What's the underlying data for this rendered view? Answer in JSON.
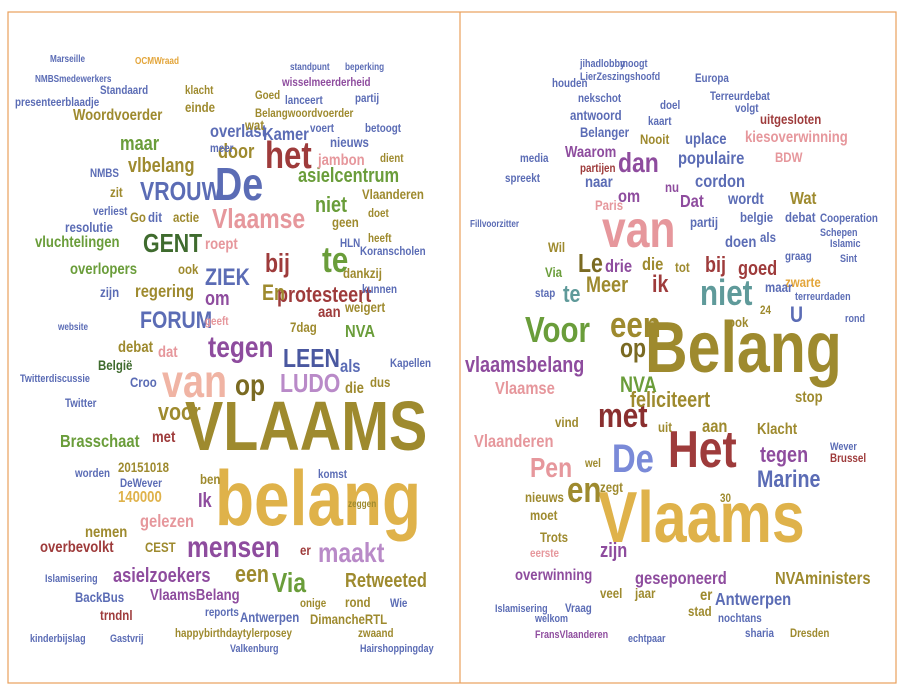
{
  "left": {
    "words": [
      {
        "text": "VLAAMS",
        "color": "#9e8a2e"
      },
      {
        "text": "belang",
        "color": "#dfb24a"
      },
      {
        "text": "De",
        "color": "#5b6cb5"
      },
      {
        "text": "het",
        "color": "#9e3b3b"
      },
      {
        "text": "VROUW",
        "color": "#5b6cb5"
      },
      {
        "text": "Vlaamse",
        "color": "#e6979c"
      },
      {
        "text": "GENT",
        "color": "#3f6b2e"
      },
      {
        "text": "te",
        "color": "#6a9d3a"
      },
      {
        "text": "bij",
        "color": "#9e3b3b"
      },
      {
        "text": "ZIEK",
        "color": "#5b6cb5"
      },
      {
        "text": "FORUM",
        "color": "#5b6cb5"
      },
      {
        "text": "tegen",
        "color": "#8e4c9e"
      },
      {
        "text": "LEEN",
        "color": "#4a58a0"
      },
      {
        "text": "van",
        "color": "#f0b4a4"
      },
      {
        "text": "op",
        "color": "#7a6a22"
      },
      {
        "text": "LUDO",
        "color": "#b98ac8"
      },
      {
        "text": "voor",
        "color": "#9e8a2e"
      },
      {
        "text": "protesteert",
        "color": "#9e3b3b"
      },
      {
        "text": "niet",
        "color": "#6a9d3a"
      },
      {
        "text": "asielcentrum",
        "color": "#6a9d3a"
      },
      {
        "text": "Kamer",
        "color": "#5b6cb5"
      },
      {
        "text": "overlast",
        "color": "#5b6cb5"
      },
      {
        "text": "door",
        "color": "#9e8a2e"
      },
      {
        "text": "maar",
        "color": "#6a9d3a"
      },
      {
        "text": "vlbelang",
        "color": "#9e8a2e"
      },
      {
        "text": "Woordvoerder",
        "color": "#9e8a2e"
      },
      {
        "text": "presenteerblaadje",
        "color": "#5b6cb5"
      },
      {
        "text": "Standaard",
        "color": "#5b6cb5"
      },
      {
        "text": "wisselmeerderheid",
        "color": "#8e4c9e"
      },
      {
        "text": "Vlaanderen",
        "color": "#9e8a2e"
      },
      {
        "text": "Koranscholen",
        "color": "#5b6cb5"
      },
      {
        "text": "dankzij",
        "color": "#9e8a2e"
      },
      {
        "text": "kunnen",
        "color": "#5b6cb5"
      },
      {
        "text": "weigert",
        "color": "#9e8a2e"
      },
      {
        "text": "7dag",
        "color": "#9e8a2e"
      },
      {
        "text": "NVA",
        "color": "#6a9d3a"
      },
      {
        "text": "als",
        "color": "#5b6cb5"
      },
      {
        "text": "die",
        "color": "#9e8a2e"
      },
      {
        "text": "Kapellen",
        "color": "#5b6cb5"
      },
      {
        "text": "regering",
        "color": "#9e8a2e"
      },
      {
        "text": "om",
        "color": "#8e4c9e"
      },
      {
        "text": "zijn",
        "color": "#5b6cb5"
      },
      {
        "text": "overlopers",
        "color": "#6a9d3a"
      },
      {
        "text": "vluchtelingen",
        "color": "#6a9d3a"
      },
      {
        "text": "resolutie",
        "color": "#5b6cb5"
      },
      {
        "text": "geen",
        "color": "#9e8a2e"
      },
      {
        "text": "HLN",
        "color": "#5b6cb5"
      },
      {
        "text": "heeft",
        "color": "#9e8a2e"
      },
      {
        "text": "roept",
        "color": "#e6979c"
      },
      {
        "text": "En",
        "color": "#9e8a2e"
      },
      {
        "text": "debat",
        "color": "#9e8a2e"
      },
      {
        "text": "dat",
        "color": "#e6979c"
      },
      {
        "text": "België",
        "color": "#3f6b2e"
      },
      {
        "text": "Croo",
        "color": "#5b6cb5"
      },
      {
        "text": "Twitterdiscussie",
        "color": "#5b6cb5"
      },
      {
        "text": "Twitter",
        "color": "#5b6cb5"
      },
      {
        "text": "Brasschaat",
        "color": "#6a9d3a"
      },
      {
        "text": "met",
        "color": "#9e3b3b"
      },
      {
        "text": "20151018",
        "color": "#9e8a2e"
      },
      {
        "text": "140000",
        "color": "#dfb24a"
      },
      {
        "text": "DeWever",
        "color": "#5b6cb5"
      },
      {
        "text": "Ik",
        "color": "#8e4c9e"
      },
      {
        "text": "gelezen",
        "color": "#e6979c"
      },
      {
        "text": "nemen",
        "color": "#9e8a2e"
      },
      {
        "text": "overbevolkt",
        "color": "#9e3b3b"
      },
      {
        "text": "CEST",
        "color": "#9e8a2e"
      },
      {
        "text": "mensen",
        "color": "#8e4c9e"
      },
      {
        "text": "maakt",
        "color": "#b98ac8"
      },
      {
        "text": "een",
        "color": "#9e8a2e"
      },
      {
        "text": "Via",
        "color": "#6a9d3a"
      },
      {
        "text": "Retweeted",
        "color": "#9e8a2e"
      },
      {
        "text": "asielzoekers",
        "color": "#8e4c9e"
      },
      {
        "text": "Islamisering",
        "color": "#5b6cb5"
      },
      {
        "text": "BackBus",
        "color": "#5b6cb5"
      },
      {
        "text": "VlaamsBelang",
        "color": "#8e4c9e"
      },
      {
        "text": "trndnl",
        "color": "#9e3b3b"
      },
      {
        "text": "Antwerpen",
        "color": "#5b6cb5"
      },
      {
        "text": "DimancheRTL",
        "color": "#9e8a2e"
      },
      {
        "text": "rond",
        "color": "#9e8a2e"
      },
      {
        "text": "happybirthdaytylerposey",
        "color": "#9e8a2e"
      },
      {
        "text": "kinderbijslag",
        "color": "#5b6cb5"
      },
      {
        "text": "Gastvrij",
        "color": "#5b6cb5"
      },
      {
        "text": "Valkenburg",
        "color": "#5b6cb5"
      },
      {
        "text": "Hairshoppingday",
        "color": "#5b6cb5"
      },
      {
        "text": "zwaand",
        "color": "#9e8a2e"
      },
      {
        "text": "reports",
        "color": "#5b6cb5"
      },
      {
        "text": "onige",
        "color": "#9e8a2e"
      },
      {
        "text": "er",
        "color": "#9e3b3b"
      },
      {
        "text": "Marseille",
        "color": "#5b6cb5"
      },
      {
        "text": "NMBSmedewerkers",
        "color": "#5b6cb5"
      },
      {
        "text": "OCMWraad",
        "color": "#e3a53a"
      },
      {
        "text": "standpunt",
        "color": "#5b6cb5"
      },
      {
        "text": "beperking",
        "color": "#5b6cb5"
      },
      {
        "text": "lanceert",
        "color": "#5b6cb5"
      },
      {
        "text": "partij",
        "color": "#5b6cb5"
      },
      {
        "text": "einde",
        "color": "#9e8a2e"
      },
      {
        "text": "Goed",
        "color": "#9e8a2e"
      },
      {
        "text": "klacht",
        "color": "#9e8a2e"
      },
      {
        "text": "Belangwoordvoerder",
        "color": "#9e8a2e"
      },
      {
        "text": "voert",
        "color": "#5b6cb5"
      },
      {
        "text": "betoogt",
        "color": "#5b6cb5"
      },
      {
        "text": "wat",
        "color": "#9e8a2e"
      },
      {
        "text": "nieuws",
        "color": "#5b6cb5"
      },
      {
        "text": "jambon",
        "color": "#e6979c"
      },
      {
        "text": "dient",
        "color": "#9e8a2e"
      },
      {
        "text": "meer",
        "color": "#5b6cb5"
      },
      {
        "text": "zit",
        "color": "#9e8a2e"
      },
      {
        "text": "NMBS",
        "color": "#5b6cb5"
      },
      {
        "text": "verliest",
        "color": "#5b6cb5"
      },
      {
        "text": "Go",
        "color": "#9e8a2e"
      },
      {
        "text": "dit",
        "color": "#5b6cb5"
      },
      {
        "text": "actie",
        "color": "#9e8a2e"
      },
      {
        "text": "doet",
        "color": "#9e8a2e"
      },
      {
        "text": "ook",
        "color": "#9e8a2e"
      },
      {
        "text": "geeft",
        "color": "#e6979c"
      },
      {
        "text": "aan",
        "color": "#9e3b3b"
      },
      {
        "text": "dus",
        "color": "#9e8a2e"
      },
      {
        "text": "website",
        "color": "#5b6cb5"
      },
      {
        "text": "zeggen",
        "color": "#9e8a2e"
      },
      {
        "text": "worden",
        "color": "#5b6cb5"
      },
      {
        "text": "ben",
        "color": "#9e8a2e"
      },
      {
        "text": "Wie",
        "color": "#5b6cb5"
      },
      {
        "text": "komst",
        "color": "#5b6cb5"
      }
    ]
  },
  "right": {
    "words": [
      {
        "text": "Belang",
        "color": "#9e8a2e"
      },
      {
        "text": "Vlaams",
        "color": "#dfb24a"
      },
      {
        "text": "Het",
        "color": "#9e3b3b"
      },
      {
        "text": "De",
        "color": "#7a8ad8"
      },
      {
        "text": "van",
        "color": "#e6979c"
      },
      {
        "text": "een",
        "color": "#9e8a2e"
      },
      {
        "text": "Voor",
        "color": "#6a9d3a"
      },
      {
        "text": "niet",
        "color": "#5f9a9a"
      },
      {
        "text": "Le",
        "color": "#7a6a22"
      },
      {
        "text": "dan",
        "color": "#8e4c9e"
      },
      {
        "text": "Dat",
        "color": "#8e4c9e"
      },
      {
        "text": "om",
        "color": "#8e4c9e"
      },
      {
        "text": "op",
        "color": "#7a6a22"
      },
      {
        "text": "met",
        "color": "#8a2f2f"
      },
      {
        "text": "en",
        "color": "#9e8a2e"
      },
      {
        "text": "Pen",
        "color": "#e6979c"
      },
      {
        "text": "feliciteert",
        "color": "#9e8a2e"
      },
      {
        "text": "vlaamsbelang",
        "color": "#8e4c9e"
      },
      {
        "text": "Vlaamse",
        "color": "#e6979c"
      },
      {
        "text": "NVA",
        "color": "#6a9d3a"
      },
      {
        "text": "Vlaanderen",
        "color": "#e6979c"
      },
      {
        "text": "Marine",
        "color": "#5b6cb5"
      },
      {
        "text": "tegen",
        "color": "#8e4c9e"
      },
      {
        "text": "Klacht",
        "color": "#9e8a2e"
      },
      {
        "text": "stop",
        "color": "#9e8a2e"
      },
      {
        "text": "aan",
        "color": "#9e8a2e"
      },
      {
        "text": "uit",
        "color": "#9e8a2e"
      },
      {
        "text": "vind",
        "color": "#9e8a2e"
      },
      {
        "text": "Meer",
        "color": "#9e8a2e"
      },
      {
        "text": "ik",
        "color": "#9e3b3b"
      },
      {
        "text": "drie",
        "color": "#8e4c9e"
      },
      {
        "text": "die",
        "color": "#9e8a2e"
      },
      {
        "text": "tot",
        "color": "#9e8a2e"
      },
      {
        "text": "bij",
        "color": "#9e3b3b"
      },
      {
        "text": "goed",
        "color": "#9e3b3b"
      },
      {
        "text": "Via",
        "color": "#6a9d3a"
      },
      {
        "text": "Wil",
        "color": "#9e8a2e"
      },
      {
        "text": "doen",
        "color": "#5b6cb5"
      },
      {
        "text": "als",
        "color": "#5b6cb5"
      },
      {
        "text": "graag",
        "color": "#5b6cb5"
      },
      {
        "text": "zwarte",
        "color": "#e3a53a"
      },
      {
        "text": "maar",
        "color": "#5b6cb5"
      },
      {
        "text": "terreurdaden",
        "color": "#5b6cb5"
      },
      {
        "text": "ook",
        "color": "#9e8a2e"
      },
      {
        "text": "U",
        "color": "#5b6cb5"
      },
      {
        "text": "populaire",
        "color": "#5b6cb5"
      },
      {
        "text": "cordon",
        "color": "#5b6cb5"
      },
      {
        "text": "wordt",
        "color": "#5b6cb5"
      },
      {
        "text": "Wat",
        "color": "#9e8a2e"
      },
      {
        "text": "partij",
        "color": "#5b6cb5"
      },
      {
        "text": "belgie",
        "color": "#5b6cb5"
      },
      {
        "text": "debat",
        "color": "#5b6cb5"
      },
      {
        "text": "Cooperation",
        "color": "#5b6cb5"
      },
      {
        "text": "kiesoverwinning",
        "color": "#e6979c"
      },
      {
        "text": "uplace",
        "color": "#5b6cb5"
      },
      {
        "text": "Nooit",
        "color": "#9e8a2e"
      },
      {
        "text": "Belanger",
        "color": "#5b6cb5"
      },
      {
        "text": "Waarom",
        "color": "#8e4c9e"
      },
      {
        "text": "antwoord",
        "color": "#5b6cb5"
      },
      {
        "text": "nekschot",
        "color": "#5b6cb5"
      },
      {
        "text": "houden",
        "color": "#5b6cb5"
      },
      {
        "text": "LierZeszingshoofd",
        "color": "#5b6cb5"
      },
      {
        "text": "Europa",
        "color": "#5b6cb5"
      },
      {
        "text": "Terreurdebat",
        "color": "#5b6cb5"
      },
      {
        "text": "uitgesloten",
        "color": "#9e3b3b"
      },
      {
        "text": "volgt",
        "color": "#5b6cb5"
      },
      {
        "text": "doel",
        "color": "#5b6cb5"
      },
      {
        "text": "kaart",
        "color": "#5b6cb5"
      },
      {
        "text": "partijen",
        "color": "#9e3b3b"
      },
      {
        "text": "BDW",
        "color": "#e6979c"
      },
      {
        "text": "naar",
        "color": "#5b6cb5"
      },
      {
        "text": "Paris",
        "color": "#e6979c"
      },
      {
        "text": "Fillvoorzitter",
        "color": "#5b6cb5"
      },
      {
        "text": "media",
        "color": "#5b6cb5"
      },
      {
        "text": "spreekt",
        "color": "#5b6cb5"
      },
      {
        "text": "Islamic",
        "color": "#5b6cb5"
      },
      {
        "text": "Sint",
        "color": "#5b6cb5"
      },
      {
        "text": "te",
        "color": "#5f9a9a"
      },
      {
        "text": "stap",
        "color": "#5b6cb5"
      },
      {
        "text": "nu",
        "color": "#8e4c9e"
      },
      {
        "text": "rond",
        "color": "#5b6cb5"
      },
      {
        "text": "24",
        "color": "#9e8a2e"
      },
      {
        "text": "Brussel",
        "color": "#9e3b3b"
      },
      {
        "text": "Wever",
        "color": "#5b6cb5"
      },
      {
        "text": "nieuws",
        "color": "#9e8a2e"
      },
      {
        "text": "zegt",
        "color": "#9e8a2e"
      },
      {
        "text": "wel",
        "color": "#9e8a2e"
      },
      {
        "text": "zijn",
        "color": "#8e4c9e"
      },
      {
        "text": "Trots",
        "color": "#9e8a2e"
      },
      {
        "text": "moet",
        "color": "#9e8a2e"
      },
      {
        "text": "eerste",
        "color": "#e6979c"
      },
      {
        "text": "overwinning",
        "color": "#8e4c9e"
      },
      {
        "text": "geseponeerd",
        "color": "#8e4c9e"
      },
      {
        "text": "NVAministers",
        "color": "#9e8a2e"
      },
      {
        "text": "er",
        "color": "#9e8a2e"
      },
      {
        "text": "Antwerpen",
        "color": "#5b6cb5"
      },
      {
        "text": "veel",
        "color": "#9e8a2e"
      },
      {
        "text": "jaar",
        "color": "#9e8a2e"
      },
      {
        "text": "Vraag",
        "color": "#5b6cb5"
      },
      {
        "text": "Islamisering",
        "color": "#5b6cb5"
      },
      {
        "text": "stad",
        "color": "#9e8a2e"
      },
      {
        "text": "nochtans",
        "color": "#5b6cb5"
      },
      {
        "text": "sharia",
        "color": "#5b6cb5"
      },
      {
        "text": "Dresden",
        "color": "#9e8a2e"
      },
      {
        "text": "FransVlaanderen",
        "color": "#8e4c9e"
      },
      {
        "text": "echtpaar",
        "color": "#5b6cb5"
      },
      {
        "text": "welkom",
        "color": "#5b6cb5"
      },
      {
        "text": "30",
        "color": "#9e8a2e"
      },
      {
        "text": "Schepen",
        "color": "#5b6cb5"
      },
      {
        "text": "jihadlobby",
        "color": "#5b6cb5"
      },
      {
        "text": "moogt",
        "color": "#5b6cb5"
      }
    ]
  }
}
